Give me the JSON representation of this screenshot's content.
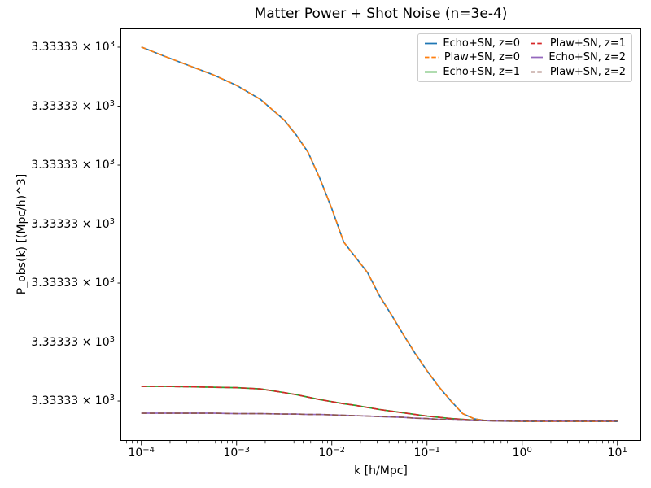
{
  "chart_data": {
    "type": "line",
    "title": "Matter Power + Shot Noise (n=3e-4)",
    "xlabel": "k [h/Mpc]",
    "ylabel": "P_obs(k) [(Mpc/h)^3]",
    "x_scale": "log",
    "y_scale": "log",
    "grid": false,
    "x_range_log10": [
      -4.22,
      1.25
    ],
    "x_major_ticks": [
      {
        "log10": -4,
        "base": "10",
        "exp": "−4"
      },
      {
        "log10": -3,
        "base": "10",
        "exp": "−3"
      },
      {
        "log10": -2,
        "base": "10",
        "exp": "−2"
      },
      {
        "log10": -1,
        "base": "10",
        "exp": "−1"
      },
      {
        "log10": 0,
        "base": "10",
        "exp": "0"
      },
      {
        "log10": 1,
        "base": "10",
        "exp": "1"
      }
    ],
    "y_ticks": {
      "label_mantissa": "3.33333 × 10",
      "label_exp": "3",
      "fracs": [
        0.9547,
        0.8116,
        0.6686,
        0.5256,
        0.3826,
        0.2396,
        0.0966
      ]
    },
    "note": "All seven y tick labels read identically (3.33333 × 10^3) because the log-scale y range is extremely narrow around the shot-noise level 1/n = 3333.33; y_frac gives each curve's height as a fraction of the plot box above the bottom axis.",
    "x_log10": [
      -4,
      -3.75,
      -3.5,
      -3.25,
      -3,
      -2.75,
      -2.5,
      -2.375,
      -2.25,
      -2.125,
      -2,
      -1.875,
      -1.75,
      -1.625,
      -1.5,
      -1.375,
      -1.25,
      -1.125,
      -1,
      -0.875,
      -0.75,
      -0.625,
      -0.5,
      -0.375,
      -0.25,
      0,
      0.25,
      0.5,
      0.75,
      1
    ],
    "series": [
      {
        "id": "echo-sn-z0",
        "label": "Echo+SN, z=0",
        "color": "#1f77b4",
        "style": "solid",
        "y_frac": [
          0.955,
          0.932,
          0.91,
          0.888,
          0.862,
          0.828,
          0.778,
          0.742,
          0.7,
          0.636,
          0.563,
          0.482,
          0.445,
          0.408,
          0.352,
          0.306,
          0.258,
          0.212,
          0.17,
          0.131,
          0.097,
          0.066,
          0.053,
          0.049,
          0.048,
          0.047,
          0.047,
          0.047,
          0.047,
          0.047
        ]
      },
      {
        "id": "plaw-sn-z0",
        "label": "Plaw+SN, z=0",
        "color": "#ff7f0e",
        "style": "dashed",
        "y_frac": [
          0.955,
          0.932,
          0.91,
          0.888,
          0.862,
          0.828,
          0.778,
          0.742,
          0.7,
          0.636,
          0.563,
          0.482,
          0.445,
          0.408,
          0.352,
          0.306,
          0.258,
          0.212,
          0.17,
          0.131,
          0.097,
          0.066,
          0.053,
          0.049,
          0.048,
          0.047,
          0.047,
          0.047,
          0.047,
          0.047
        ]
      },
      {
        "id": "echo-sn-z1",
        "label": "Echo+SN, z=1",
        "color": "#2ca02c",
        "style": "solid",
        "y_frac": [
          0.132,
          0.132,
          0.131,
          0.13,
          0.129,
          0.126,
          0.117,
          0.112,
          0.106,
          0.1,
          0.095,
          0.09,
          0.086,
          0.081,
          0.076,
          0.072,
          0.068,
          0.064,
          0.06,
          0.057,
          0.054,
          0.052,
          0.05,
          0.049,
          0.049,
          0.048,
          0.048,
          0.048,
          0.048,
          0.048
        ]
      },
      {
        "id": "plaw-sn-z1",
        "label": "Plaw+SN, z=1",
        "color": "#d62728",
        "style": "dashed",
        "y_frac": [
          0.132,
          0.132,
          0.131,
          0.13,
          0.129,
          0.126,
          0.117,
          0.112,
          0.106,
          0.1,
          0.095,
          0.09,
          0.086,
          0.081,
          0.076,
          0.072,
          0.068,
          0.064,
          0.06,
          0.057,
          0.054,
          0.052,
          0.05,
          0.049,
          0.049,
          0.048,
          0.048,
          0.048,
          0.048,
          0.048
        ]
      },
      {
        "id": "echo-sn-z2",
        "label": "Echo+SN, z=2",
        "color": "#9467bd",
        "style": "solid",
        "y_frac": [
          0.067,
          0.067,
          0.067,
          0.067,
          0.066,
          0.066,
          0.065,
          0.065,
          0.064,
          0.064,
          0.063,
          0.062,
          0.061,
          0.06,
          0.059,
          0.058,
          0.057,
          0.055,
          0.054,
          0.052,
          0.051,
          0.05,
          0.049,
          0.049,
          0.048,
          0.048,
          0.048,
          0.048,
          0.048,
          0.048
        ]
      },
      {
        "id": "plaw-sn-z2",
        "label": "Plaw+SN, z=2",
        "color": "#8c564b",
        "style": "dashed",
        "y_frac": [
          0.067,
          0.067,
          0.067,
          0.067,
          0.066,
          0.066,
          0.065,
          0.065,
          0.064,
          0.064,
          0.063,
          0.062,
          0.061,
          0.06,
          0.059,
          0.058,
          0.057,
          0.055,
          0.054,
          0.052,
          0.051,
          0.05,
          0.049,
          0.049,
          0.048,
          0.048,
          0.048,
          0.048,
          0.048,
          0.048
        ]
      }
    ],
    "legend": {
      "position": "upper right",
      "columns": 2,
      "fill_order": "column-major"
    }
  }
}
